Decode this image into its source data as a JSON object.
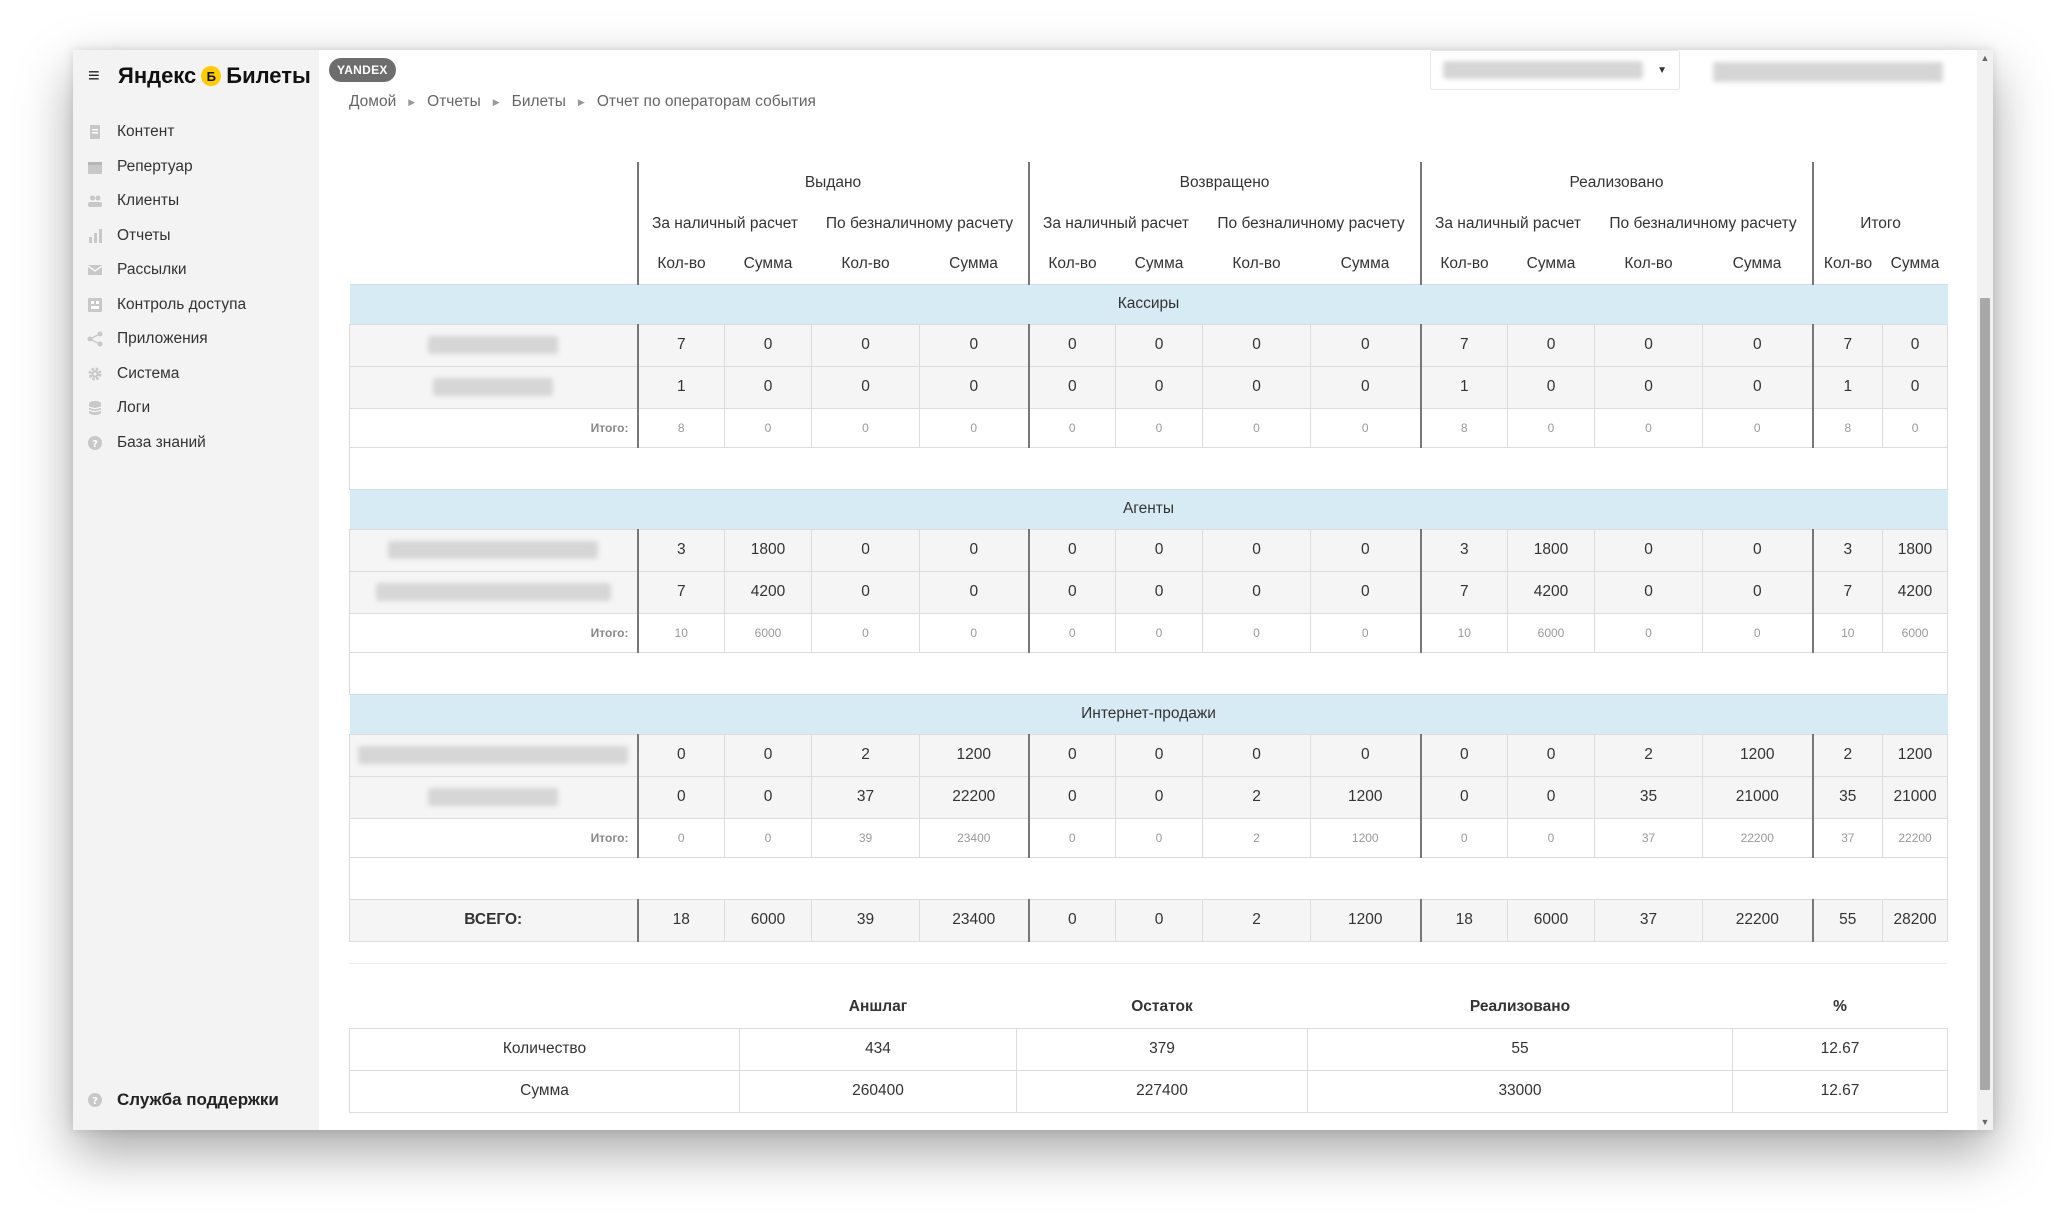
{
  "app": {
    "menu_icon": "≡",
    "logo_left": "Яндекс",
    "logo_mark": "Б",
    "logo_right": "Билеты",
    "badge": "YANDEX"
  },
  "sidebar": {
    "items": [
      {
        "label": "Контент",
        "icon": "document-icon"
      },
      {
        "label": "Репертуар",
        "icon": "calendar-icon"
      },
      {
        "label": "Клиенты",
        "icon": "users-icon"
      },
      {
        "label": "Отчеты",
        "icon": "bar-chart-icon"
      },
      {
        "label": "Рассылки",
        "icon": "mail-icon"
      },
      {
        "label": "Контроль доступа",
        "icon": "access-control-icon"
      },
      {
        "label": "Приложения",
        "icon": "share-icon"
      },
      {
        "label": "Система",
        "icon": "gear-icon"
      },
      {
        "label": "Логи",
        "icon": "database-icon"
      },
      {
        "label": "База знаний",
        "icon": "help-icon"
      }
    ],
    "support_label": "Служба поддержки"
  },
  "breadcrumb": {
    "items": [
      "Домой",
      "Отчеты",
      "Билеты"
    ],
    "current": "Отчет по операторам события"
  },
  "report": {
    "groups": [
      "Выдано",
      "Возвращено",
      "Реализовано"
    ],
    "payment_types": [
      "За наличный расчет",
      "По безналичному расчету"
    ],
    "total_header": "Итого",
    "col_qty": "Кол-во",
    "col_sum": "Сумма",
    "itogo_label": "Итого:",
    "sections": [
      {
        "title": "Кассиры",
        "rows": [
          [
            "7",
            "0",
            "0",
            "0",
            "0",
            "0",
            "0",
            "0",
            "7",
            "0",
            "0",
            "0",
            "7",
            "0"
          ],
          [
            "1",
            "0",
            "0",
            "0",
            "0",
            "0",
            "0",
            "0",
            "1",
            "0",
            "0",
            "0",
            "1",
            "0"
          ]
        ],
        "itogo": [
          "8",
          "0",
          "0",
          "0",
          "0",
          "0",
          "0",
          "0",
          "8",
          "0",
          "0",
          "0",
          "8",
          "0"
        ]
      },
      {
        "title": "Агенты",
        "rows": [
          [
            "3",
            "1800",
            "0",
            "0",
            "0",
            "0",
            "0",
            "0",
            "3",
            "1800",
            "0",
            "0",
            "3",
            "1800"
          ],
          [
            "7",
            "4200",
            "0",
            "0",
            "0",
            "0",
            "0",
            "0",
            "7",
            "4200",
            "0",
            "0",
            "7",
            "4200"
          ]
        ],
        "itogo": [
          "10",
          "6000",
          "0",
          "0",
          "0",
          "0",
          "0",
          "0",
          "10",
          "6000",
          "0",
          "0",
          "10",
          "6000"
        ]
      },
      {
        "title": "Интернет-продажи",
        "rows": [
          [
            "0",
            "0",
            "2",
            "1200",
            "0",
            "0",
            "0",
            "0",
            "0",
            "0",
            "2",
            "1200",
            "2",
            "1200"
          ],
          [
            "0",
            "0",
            "37",
            "22200",
            "0",
            "0",
            "2",
            "1200",
            "0",
            "0",
            "35",
            "21000",
            "35",
            "21000"
          ]
        ],
        "itogo": [
          "0",
          "0",
          "39",
          "23400",
          "0",
          "0",
          "2",
          "1200",
          "0",
          "0",
          "37",
          "22200",
          "37",
          "22200"
        ]
      }
    ],
    "grand_total_label": "ВСЕГО:",
    "grand_total": [
      "18",
      "6000",
      "39",
      "23400",
      "0",
      "0",
      "2",
      "1200",
      "18",
      "6000",
      "37",
      "22200",
      "55",
      "28200"
    ]
  },
  "summary": {
    "headers": [
      "",
      "Аншлаг",
      "Остаток",
      "Реализовано",
      "%"
    ],
    "rows": [
      {
        "label": "Количество",
        "values": [
          "434",
          "379",
          "55",
          "12.67"
        ]
      },
      {
        "label": "Сумма",
        "values": [
          "260400",
          "227400",
          "33000",
          "12.67"
        ]
      }
    ]
  }
}
